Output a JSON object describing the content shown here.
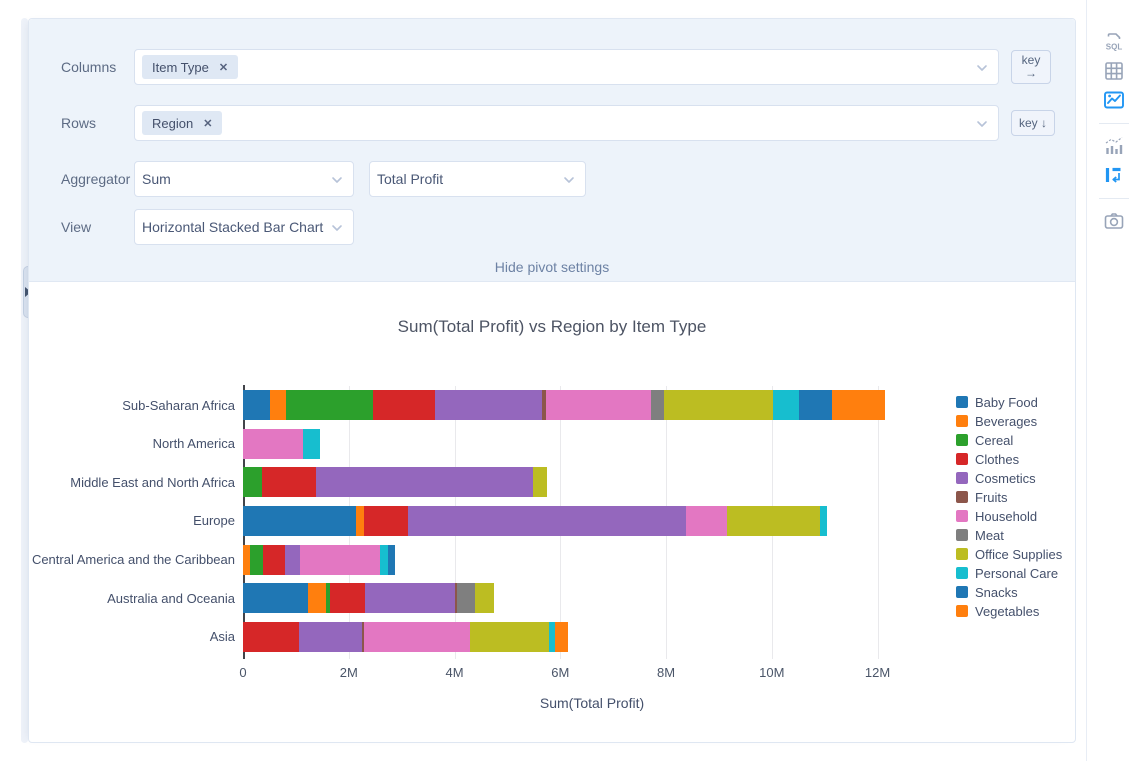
{
  "panel": {
    "columns": {
      "label": "Columns",
      "chip": "Item Type",
      "chip_close": "✕",
      "key_button_line1": "key",
      "key_button_line2": "→"
    },
    "rows": {
      "label": "Rows",
      "chip": "Region",
      "chip_close": "✕",
      "key_button": "key ↓"
    },
    "aggregator": {
      "label": "Aggregator",
      "selected": "Sum",
      "field_selected": "Total Profit"
    },
    "view": {
      "label": "View",
      "selected": "Horizontal Stacked Bar Chart"
    },
    "hide_link": "Hide pivot settings"
  },
  "sidebar": {
    "active_color": "#2196f3",
    "inactive_color": "#98a4b8",
    "items": [
      {
        "name": "sql-icon",
        "active": false
      },
      {
        "name": "table-grid-icon",
        "active": false
      },
      {
        "name": "image-chart-icon",
        "active": true
      },
      {
        "name": "stats-chart-icon",
        "active": false
      },
      {
        "name": "pivot-icon",
        "active": true
      },
      {
        "name": "camera-icon",
        "active": false
      }
    ]
  },
  "chart_data": {
    "type": "bar",
    "orientation": "horizontal",
    "stacked": true,
    "title": "Sum(Total Profit) vs Region by Item Type",
    "xlabel": "Sum(Total Profit)",
    "values_unit": "millions",
    "xmax_m": 13.2,
    "grid": true,
    "legend_position": "right",
    "ticks": [
      {
        "v": 0,
        "label": "0"
      },
      {
        "v": 2,
        "label": "2M"
      },
      {
        "v": 4,
        "label": "4M"
      },
      {
        "v": 6,
        "label": "6M"
      },
      {
        "v": 8,
        "label": "8M"
      },
      {
        "v": 10,
        "label": "10M"
      },
      {
        "v": 12,
        "label": "12M"
      }
    ],
    "categories": [
      "Sub-Saharan Africa",
      "North America",
      "Middle East and North Africa",
      "Europe",
      "Central America and the Caribbean",
      "Australia and Oceania",
      "Asia"
    ],
    "series": [
      {
        "name": "Baby Food",
        "color": "#1f77b4",
        "values_m": [
          0.52,
          0,
          0,
          2.13,
          0,
          1.23,
          0
        ]
      },
      {
        "name": "Beverages",
        "color": "#ff7f0e",
        "values_m": [
          0.3,
          0,
          0,
          0.16,
          0.14,
          0.34,
          0
        ]
      },
      {
        "name": "Cereal",
        "color": "#2ca02c",
        "values_m": [
          1.63,
          0,
          0.35,
          0,
          0.24,
          0.07,
          0
        ]
      },
      {
        "name": "Clothes",
        "color": "#d62728",
        "values_m": [
          1.19,
          0,
          1.03,
          0.83,
          0.42,
          0.66,
          1.05
        ]
      },
      {
        "name": "Cosmetics",
        "color": "#9467bd",
        "values_m": [
          2.01,
          0,
          4.1,
          5.26,
          0.28,
          1.71,
          1.21
        ]
      },
      {
        "name": "Fruits",
        "color": "#8c564b",
        "values_m": [
          0.09,
          0,
          0,
          0,
          0,
          0.03,
          0.02
        ]
      },
      {
        "name": "Household",
        "color": "#e377c2",
        "values_m": [
          1.97,
          1.14,
          0,
          0.78,
          1.51,
          0,
          2.01
        ]
      },
      {
        "name": "Meat",
        "color": "#7f7f7f",
        "values_m": [
          0.26,
          0,
          0,
          0,
          0,
          0.34,
          0
        ]
      },
      {
        "name": "Office Supplies",
        "color": "#bcbd22",
        "values_m": [
          2.06,
          0,
          0.27,
          1.76,
          0,
          0.37,
          1.49
        ]
      },
      {
        "name": "Personal Care",
        "color": "#17becf",
        "values_m": [
          0.49,
          0.31,
          0,
          0.12,
          0.16,
          0,
          0.12
        ]
      },
      {
        "name": "Snacks",
        "color": "#1f77b4",
        "values_m": [
          0.62,
          0,
          0,
          0,
          0.12,
          0,
          0
        ]
      },
      {
        "name": "Vegetables",
        "color": "#ff7f0e",
        "values_m": [
          1.0,
          0,
          0,
          0,
          0,
          0,
          0.24
        ]
      }
    ]
  }
}
